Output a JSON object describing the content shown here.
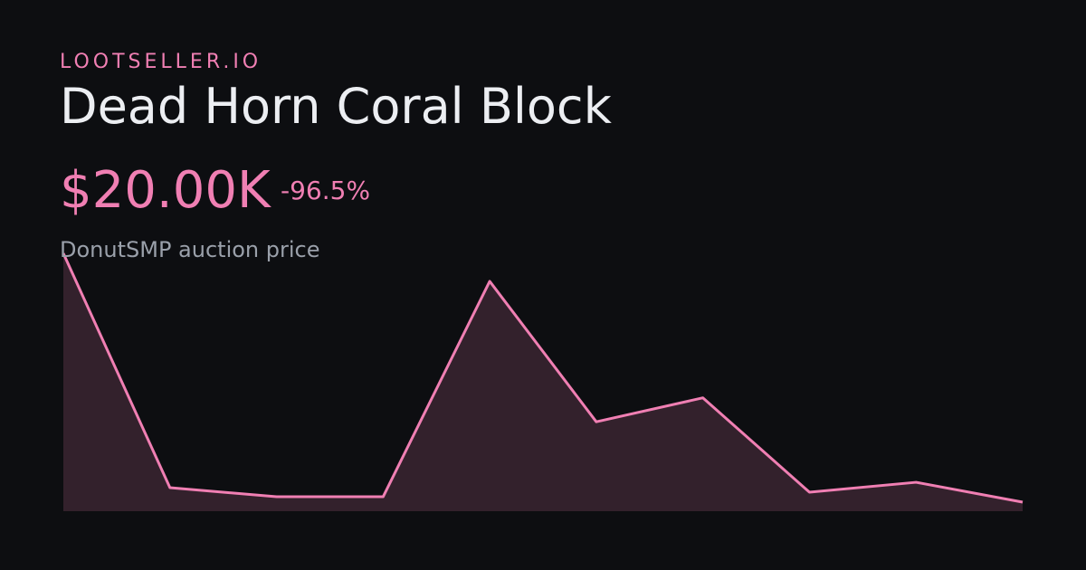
{
  "brand": "LOOTSELLER.IO",
  "title": "Dead Horn Coral Block",
  "price": "$20.00K",
  "change": "-96.5%",
  "subtitle": "DonutSMP auction price",
  "chart_data": {
    "type": "line",
    "values": [
      571000,
      52000,
      32000,
      32000,
      509000,
      198000,
      251000,
      42000,
      64000,
      20000
    ],
    "color": "#f07fb3",
    "fill": "#33212c"
  }
}
